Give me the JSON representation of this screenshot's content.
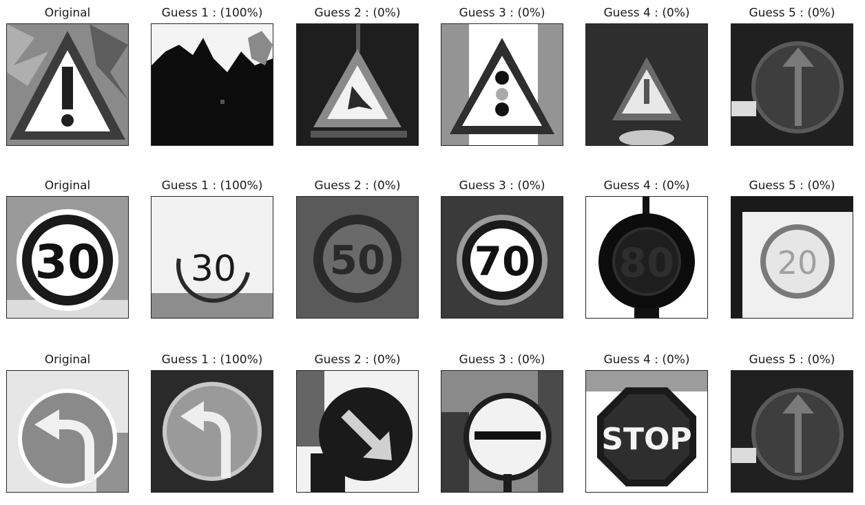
{
  "rows": [
    {
      "original_label": "Original",
      "guesses": [
        {
          "label": "Guess 1 : (100%)",
          "probability": 100,
          "image": "road-with-trees-silhouette"
        },
        {
          "label": "Guess 2 : (0%)",
          "probability": 0,
          "image": "road-work-sign"
        },
        {
          "label": "Guess 3 : (0%)",
          "probability": 0,
          "image": "traffic-signals-sign"
        },
        {
          "label": "Guess 4 : (0%)",
          "probability": 0,
          "image": "warning-triangle-sign"
        },
        {
          "label": "Guess 5 : (0%)",
          "probability": 0,
          "image": "ahead-only-sign"
        }
      ],
      "original_image": "general-caution-sign"
    },
    {
      "original_label": "Original",
      "guesses": [
        {
          "label": "Guess 1 : (100%)",
          "probability": 100,
          "image": "speed-limit-30-sign"
        },
        {
          "label": "Guess 2 : (0%)",
          "probability": 0,
          "image": "speed-limit-50-sign"
        },
        {
          "label": "Guess 3 : (0%)",
          "probability": 0,
          "image": "speed-limit-70-sign"
        },
        {
          "label": "Guess 4 : (0%)",
          "probability": 0,
          "image": "speed-limit-80-sign"
        },
        {
          "label": "Guess 5 : (0%)",
          "probability": 0,
          "image": "speed-limit-20-sign"
        }
      ],
      "original_image": "speed-limit-30-sign"
    },
    {
      "original_label": "Original",
      "guesses": [
        {
          "label": "Guess 1 : (100%)",
          "probability": 100,
          "image": "turn-left-ahead-sign"
        },
        {
          "label": "Guess 2 : (0%)",
          "probability": 0,
          "image": "keep-right-sign"
        },
        {
          "label": "Guess 3 : (0%)",
          "probability": 0,
          "image": "no-entry-sign"
        },
        {
          "label": "Guess 4 : (0%)",
          "probability": 0,
          "image": "stop-sign"
        },
        {
          "label": "Guess 5 : (0%)",
          "probability": 0,
          "image": "ahead-only-sign"
        }
      ],
      "original_image": "turn-left-ahead-sign"
    }
  ],
  "sign_text": {
    "r1c3": "30",
    "r1c1": "30",
    "r1c2": "50",
    "r1c4": "70",
    "r1c5": "80",
    "r1c6": "20",
    "stop": "STOP"
  }
}
